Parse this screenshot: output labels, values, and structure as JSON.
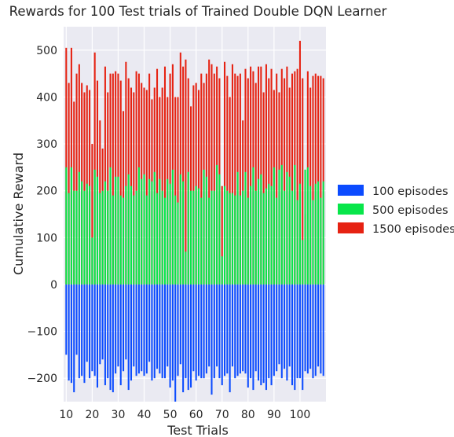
{
  "chart_data": {
    "type": "bar",
    "title": "Rewards for 100 Test trials of Trained Double DQN Learner",
    "xlabel": "Test Trials",
    "ylabel": "Cumulative Reward",
    "xlim": [
      9,
      110
    ],
    "ylim": [
      -250,
      550
    ],
    "xticks": [
      10,
      20,
      30,
      40,
      50,
      60,
      70,
      80,
      90,
      100
    ],
    "yticks": [
      -200,
      -100,
      0,
      100,
      200,
      300,
      400,
      500
    ],
    "grid": true,
    "legend_position": "right",
    "x": [
      10,
      11,
      12,
      13,
      14,
      15,
      16,
      17,
      18,
      19,
      20,
      21,
      22,
      23,
      24,
      25,
      26,
      27,
      28,
      29,
      30,
      31,
      32,
      33,
      34,
      35,
      36,
      37,
      38,
      39,
      40,
      41,
      42,
      43,
      44,
      45,
      46,
      47,
      48,
      49,
      50,
      51,
      52,
      53,
      54,
      55,
      56,
      57,
      58,
      59,
      60,
      61,
      62,
      63,
      64,
      65,
      66,
      67,
      68,
      69,
      70,
      71,
      72,
      73,
      74,
      75,
      76,
      77,
      78,
      79,
      80,
      81,
      82,
      83,
      84,
      85,
      86,
      87,
      88,
      89,
      90,
      91,
      92,
      93,
      94,
      95,
      96,
      97,
      98,
      99,
      100,
      101,
      102,
      103,
      104,
      105,
      106,
      107,
      108,
      109
    ],
    "series": [
      {
        "name": "100 episodes",
        "color": "#0b4bff",
        "values": [
          -150,
          -205,
          -210,
          -230,
          -150,
          -200,
          -195,
          -210,
          -165,
          -200,
          -185,
          -195,
          -220,
          -170,
          -160,
          -215,
          -200,
          -225,
          -230,
          -190,
          -175,
          -215,
          -185,
          -160,
          -225,
          -205,
          -175,
          -195,
          -190,
          -185,
          -195,
          -190,
          -165,
          -205,
          -200,
          -180,
          -190,
          -200,
          -200,
          -175,
          -220,
          -205,
          -250,
          -195,
          -170,
          -230,
          -200,
          -225,
          -220,
          -185,
          -205,
          -195,
          -200,
          -200,
          -190,
          -175,
          -235,
          -200,
          -175,
          -200,
          -215,
          -195,
          -190,
          -230,
          -175,
          -200,
          -195,
          -190,
          -185,
          -190,
          -220,
          -200,
          -225,
          -185,
          -205,
          -215,
          -210,
          -225,
          -200,
          -215,
          -195,
          -185,
          -170,
          -200,
          -180,
          -205,
          -175,
          -215,
          -225,
          -200,
          -200,
          -225,
          -185,
          -190,
          -180,
          -200,
          -195,
          -175,
          -190,
          -195
        ]
      },
      {
        "name": "500 episodes",
        "color": "#08e64a",
        "values": [
          250,
          195,
          250,
          200,
          200,
          240,
          220,
          200,
          215,
          210,
          100,
          245,
          230,
          195,
          200,
          220,
          200,
          250,
          190,
          230,
          230,
          190,
          185,
          210,
          235,
          210,
          190,
          200,
          250,
          225,
          235,
          190,
          225,
          220,
          240,
          195,
          225,
          200,
          185,
          225,
          215,
          245,
          190,
          175,
          235,
          220,
          70,
          240,
          200,
          200,
          210,
          205,
          185,
          245,
          230,
          185,
          200,
          200,
          255,
          235,
          60,
          210,
          200,
          195,
          195,
          190,
          240,
          190,
          200,
          240,
          185,
          210,
          250,
          200,
          225,
          235,
          195,
          205,
          215,
          210,
          250,
          185,
          245,
          255,
          200,
          240,
          230,
          200,
          255,
          180,
          215,
          95,
          245,
          250,
          210,
          180,
          215,
          220,
          185,
          220
        ]
      },
      {
        "name": "1500 episodes",
        "color": "#e62212",
        "values": [
          505,
          430,
          505,
          390,
          450,
          470,
          430,
          410,
          425,
          415,
          300,
          495,
          435,
          350,
          290,
          465,
          410,
          450,
          450,
          455,
          450,
          435,
          370,
          475,
          440,
          420,
          410,
          455,
          450,
          430,
          420,
          415,
          450,
          395,
          420,
          460,
          400,
          420,
          465,
          400,
          450,
          470,
          400,
          400,
          495,
          465,
          480,
          440,
          380,
          425,
          430,
          415,
          450,
          430,
          450,
          480,
          470,
          450,
          465,
          440,
          210,
          475,
          445,
          400,
          470,
          450,
          445,
          450,
          350,
          460,
          440,
          465,
          455,
          430,
          465,
          465,
          410,
          470,
          440,
          460,
          415,
          450,
          410,
          460,
          440,
          465,
          420,
          450,
          455,
          460,
          520,
          440,
          150,
          455,
          420,
          445,
          450,
          445,
          445,
          440
        ]
      }
    ]
  }
}
